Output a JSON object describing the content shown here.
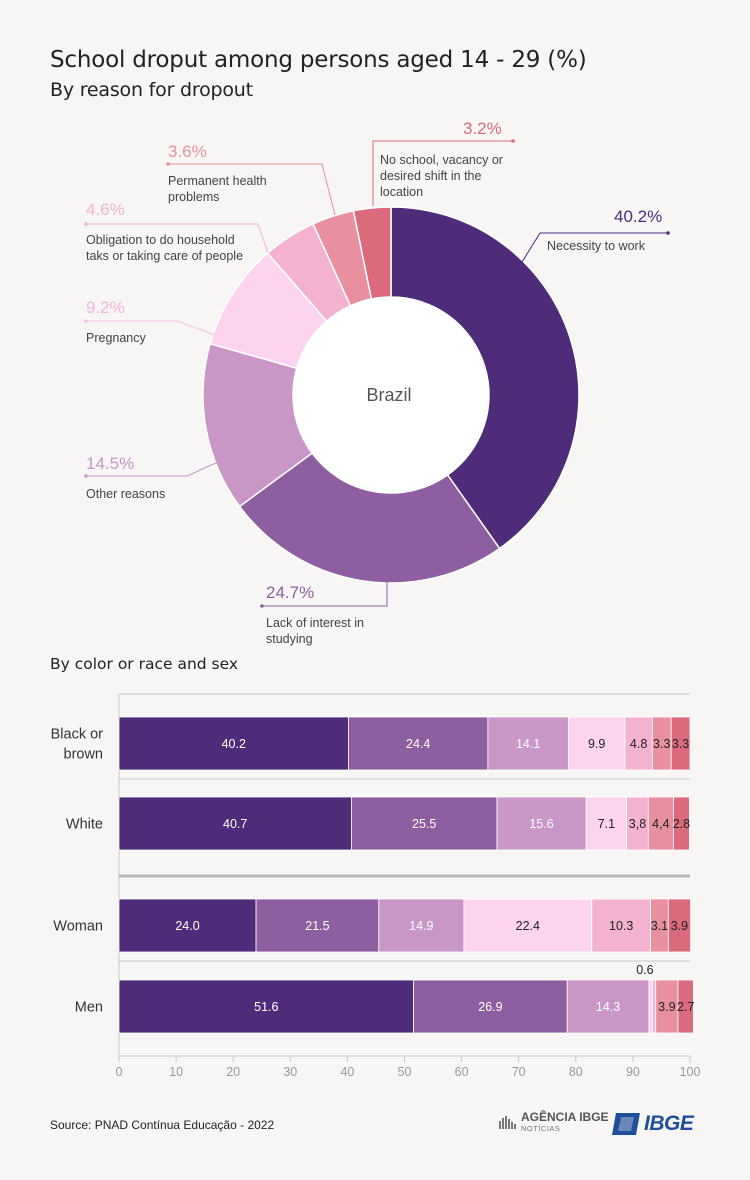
{
  "header": {
    "title": "School droput among persons aged 14 - 29 (%)",
    "subtitle": "By reason for dropout"
  },
  "colors": {
    "work": "#4e2c7a",
    "interest": "#8d5fa0",
    "other": "#c996c6",
    "pregnancy": "#fdd4ef",
    "household": "#f3b2cf",
    "health": "#e8909f",
    "school": "#db6a7c",
    "axis": "#c8c8c8"
  },
  "chart_data": [
    {
      "type": "pie",
      "center_label": "Brazil",
      "slices": [
        {
          "key": "work",
          "label": "Necessity to work",
          "value": 40.2,
          "pct_text": "40.2%"
        },
        {
          "key": "interest",
          "label": "Lack of interest in studying",
          "value": 24.7,
          "pct_text": "24.7%"
        },
        {
          "key": "other",
          "label": "Other reasons",
          "value": 14.5,
          "pct_text": "14.5%"
        },
        {
          "key": "pregnancy",
          "label": "Pregnancy",
          "value": 9.2,
          "pct_text": "9.2%"
        },
        {
          "key": "household",
          "label": "Obligation to do household taks or taking care of people",
          "value": 4.6,
          "pct_text": "4.6%"
        },
        {
          "key": "health",
          "label": "Permanent health problems",
          "value": 3.6,
          "pct_text": "3.6%"
        },
        {
          "key": "school",
          "label": "No school, vacancy or desired shift in the location",
          "value": 3.2,
          "pct_text": "3.2%"
        }
      ]
    },
    {
      "type": "bar",
      "orientation": "horizontal",
      "stacked": true,
      "title": "By color or race and sex",
      "categories": [
        "Black or brown",
        "White",
        "Woman",
        "Men"
      ],
      "xlim": [
        0,
        100
      ],
      "xticks": [
        "0",
        "10",
        "20",
        "30",
        "40",
        "50",
        "60",
        "70",
        "80",
        "90",
        "100"
      ],
      "series": [
        {
          "key": "work",
          "values": [
            40.2,
            40.7,
            24.0,
            51.6
          ],
          "labels": [
            "40.2",
            "40.7",
            "24.0",
            "51.6"
          ]
        },
        {
          "key": "interest",
          "values": [
            24.4,
            25.5,
            21.5,
            26.9
          ],
          "labels": [
            "24.4",
            "25.5",
            "21.5",
            "26.9"
          ]
        },
        {
          "key": "other",
          "values": [
            14.1,
            15.6,
            14.9,
            14.3
          ],
          "labels": [
            "14.1",
            "15.6",
            "14.9",
            "14.3"
          ]
        },
        {
          "key": "pregnancy",
          "values": [
            9.9,
            7.1,
            22.4,
            0.6
          ],
          "labels": [
            "9.9",
            "7.1",
            "22.4",
            "0.6"
          ]
        },
        {
          "key": "household",
          "values": [
            4.8,
            3.8,
            10.3,
            0.6
          ],
          "labels": [
            "4.8",
            "3,8",
            "10.3",
            ""
          ]
        },
        {
          "key": "health",
          "values": [
            3.3,
            4.4,
            3.1,
            3.9
          ],
          "labels": [
            "3.3",
            "4,4",
            "3.1",
            "3.9"
          ]
        },
        {
          "key": "school",
          "values": [
            3.3,
            2.8,
            3.9,
            2.7
          ],
          "labels": [
            "3.3",
            "2.8",
            "3.9",
            "2.7"
          ]
        }
      ]
    }
  ],
  "footer": {
    "source": "Source: PNAD Contínua Educação - 2022",
    "agencia_logo_text": "AGÊNCIA IBGE",
    "agencia_logo_sub": "NOTÍCIAS",
    "ibge_logo_text": "IBGE"
  }
}
